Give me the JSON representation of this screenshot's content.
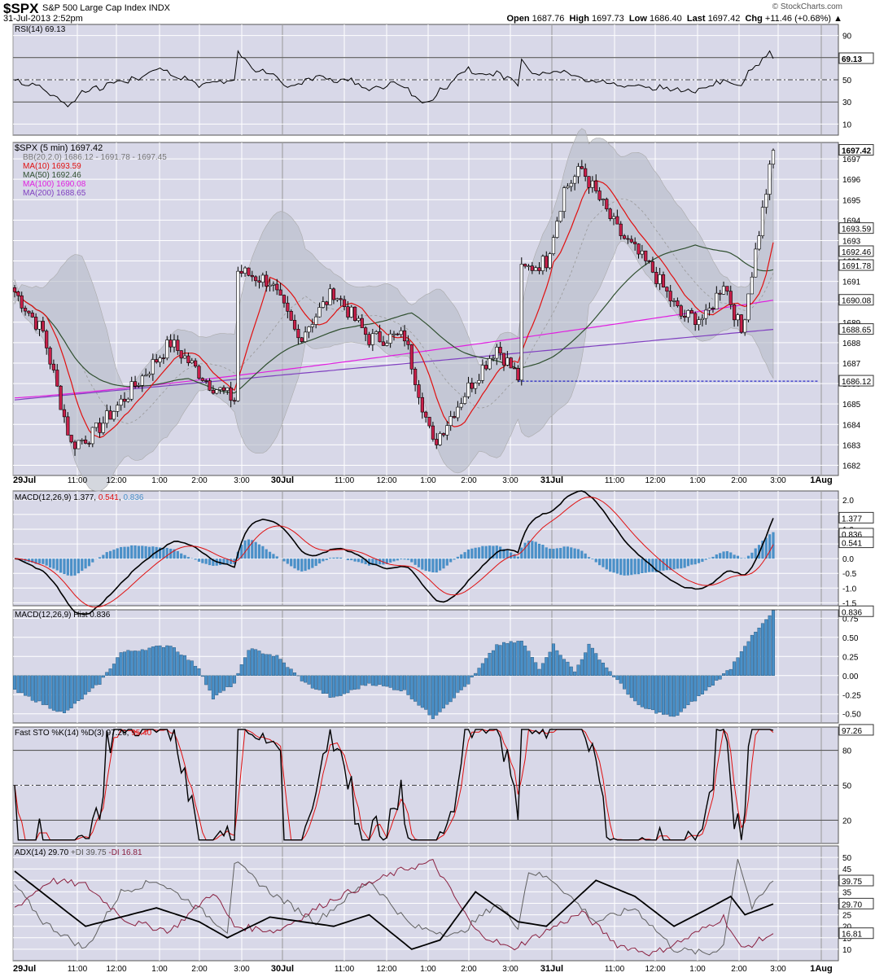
{
  "header": {
    "symbol": "$SPX",
    "name": "S&P 500 Large Cap Index",
    "exchange": "INDX",
    "datetime": "31-Jul-2013 2:52pm",
    "brand": "© StockCharts.com",
    "open_label": "Open",
    "open": "1687.76",
    "high_label": "High",
    "high": "1697.73",
    "low_label": "Low",
    "low": "1686.40",
    "last_label": "Last",
    "last": "1697.42",
    "chg_label": "Chg",
    "chg": "+11.46 (+0.68%)"
  },
  "legends": {
    "rsi": "RSI(14) 69.13",
    "price": "$SPX (5 min) 1697.42",
    "bb": "BB(20,2.0) 1686.12 - 1691.78 - 1697.45",
    "ma10": "MA(10) 1693.59",
    "ma50": "MA(50) 1692.46",
    "ma100": "MA(100) 1690.08",
    "ma200": "MA(200) 1688.65",
    "macd_name": "MACD(12,26,9)",
    "macd_v1": "1.377",
    "macd_v2": "0.541",
    "macd_v3": "0.836",
    "hist": "MACD(12,26,9) Hist 0.836",
    "sto_name": "Fast STO %K(14) %D(3)",
    "sto_v1": "97.26",
    "sto_v2": "95.40",
    "adx_name": "ADX(14) 29.70",
    "adx_v1": "+DI 39.75",
    "adx_v2": "-DI 16.81"
  },
  "colors": {
    "panel_bg": "#d8d8e8",
    "grid": "#ffffff",
    "up": "#ffffff",
    "down": "#c8204a",
    "ma10": "#e01010",
    "ma50": "#305030",
    "ma100": "#e020e0",
    "ma200": "#8040c0",
    "bb_fill": "#b8bcc8",
    "macd_hist": "#4a90c8",
    "support": "#0000c0"
  },
  "chart_data": {
    "type": "candlestick",
    "x_labels": [
      "29Jul",
      "11:00",
      "12:00",
      "1:00",
      "2:00",
      "3:00",
      "30Jul",
      "11:00",
      "12:00",
      "1:00",
      "2:00",
      "3:00",
      "31Jul",
      "11:00",
      "12:00",
      "1:00",
      "2:00",
      "3:00",
      "1Aug"
    ],
    "panels": [
      {
        "name": "RSI(14)",
        "value": 69.13,
        "ylim": [
          0,
          100
        ],
        "ticks": [
          10,
          30,
          50,
          70,
          90
        ],
        "levels": [
          30,
          50,
          70
        ]
      },
      {
        "name": "Price",
        "type": "candlestick",
        "ylim": [
          1681.5,
          1697.8
        ],
        "ticks": [
          1682,
          1683,
          1684,
          1685,
          1686,
          1687,
          1688,
          1689,
          1690,
          1691,
          1692,
          1693,
          1694,
          1695,
          1696,
          1697
        ],
        "last": 1697.42,
        "support": 1686.12,
        "value_tags": [
          1697.42,
          1693.59,
          1692.46,
          1691.78,
          1690.08,
          1688.65,
          1686.12
        ],
        "bb": {
          "lower": 1686.12,
          "mid": 1691.78,
          "upper": 1697.45
        },
        "ma": {
          "MA(10)": 1693.59,
          "MA(50)": 1692.46,
          "MA(100)": 1690.08,
          "MA(200)": 1688.65
        }
      },
      {
        "name": "MACD(12,26,9)",
        "values": {
          "macd": 1.377,
          "signal": 0.541,
          "hist": 0.836
        },
        "ticks": [
          -1.5,
          -1.0,
          -0.5,
          0.0,
          0.5,
          1.0,
          1.5,
          2.0
        ],
        "ylim": [
          -1.6,
          2.3
        ]
      },
      {
        "name": "MACD Hist",
        "value": 0.836,
        "ticks": [
          -0.5,
          -0.25,
          0.0,
          0.25,
          0.5,
          0.75
        ],
        "ylim": [
          -0.62,
          0.86
        ]
      },
      {
        "name": "Fast STO",
        "values": {
          "k": 97.26,
          "d": 95.4
        },
        "ylim": [
          0,
          100
        ],
        "ticks": [
          20,
          50,
          80
        ],
        "levels": [
          20,
          50,
          80
        ]
      },
      {
        "name": "ADX(14)",
        "values": {
          "adx": 29.7,
          "plus_di": 39.75,
          "minus_di": 16.81
        },
        "ylim": [
          5,
          55
        ],
        "ticks": [
          10,
          15,
          20,
          25,
          30,
          35,
          40,
          45,
          50
        ]
      }
    ],
    "tag_labels": {
      "rsi": [
        "69.13"
      ],
      "price": [
        "1697.42",
        "1693.59",
        "1692.46",
        "1691.78",
        "1690.08",
        "1688.65",
        "1686.12"
      ],
      "macd": [
        "1.377",
        "0.836",
        "0.541"
      ],
      "hist": [
        "0.836"
      ],
      "sto": [
        "97.26"
      ],
      "adx": [
        "39.75",
        "29.70",
        "16.81"
      ]
    },
    "tick_text": {
      "rsi": [
        "90",
        "70",
        "50",
        "30",
        "10"
      ],
      "price": [
        "1697",
        "1696",
        "1695",
        "1694",
        "1693",
        "1692",
        "1691",
        "1690",
        "1689",
        "1688",
        "1687",
        "1686",
        "1685",
        "1684",
        "1683",
        "1682"
      ],
      "macd": [
        "2.0",
        "1.5",
        "1.0",
        "0.5",
        "0.0",
        "-0.5",
        "-1.0",
        "-1.5"
      ],
      "hist": [
        "0.75",
        "0.50",
        "0.25",
        "0.00",
        "-0.25",
        "-0.50"
      ],
      "sto": [
        "80",
        "50",
        "20"
      ],
      "adx": [
        "50",
        "45",
        "40",
        "35",
        "30",
        "25",
        "20",
        "15",
        "10"
      ]
    }
  }
}
